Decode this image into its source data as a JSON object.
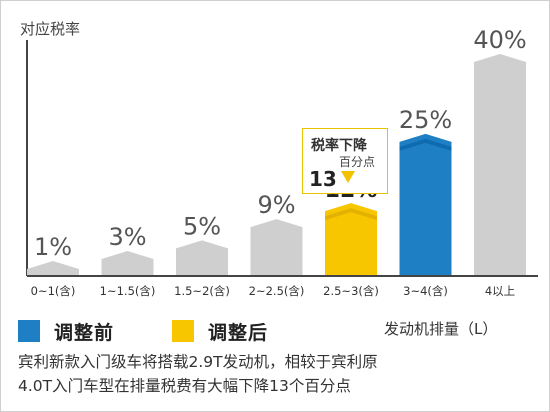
{
  "chart_data": {
    "type": "bar",
    "ylabel": "对应税率",
    "xlabel": "发动机排量（L）",
    "categories": [
      "0~1(含)",
      "1~1.5(含)",
      "1.5~2(含)",
      "2~2.5(含)",
      "2.5~3(含)",
      "3~4(含)",
      "4以上"
    ],
    "values": [
      1,
      3,
      5,
      9,
      12,
      25,
      40
    ],
    "value_labels": [
      "1%",
      "3%",
      "5%",
      "9%",
      "12%",
      "25%",
      "40%"
    ],
    "ylim": [
      0,
      40
    ],
    "grid": false,
    "legend": "bottom-left",
    "highlight": [
      {
        "category": "3~4(含)",
        "label": "调整前",
        "color": "#1f7fc4"
      },
      {
        "category": "2.5~3(含)",
        "label": "调整后",
        "color": "#f7c600"
      }
    ],
    "annotation": {
      "title": "税率下降",
      "value": "13",
      "unit": "百分点"
    }
  },
  "legend": [
    {
      "label": "调整前",
      "color": "#1f7fc4"
    },
    {
      "label": "调整后",
      "color": "#f7c600"
    }
  ],
  "colors": {
    "default_bar": "#cfcfcf",
    "before": "#1f7fc4",
    "after": "#f7c600",
    "axis": "#444444"
  },
  "caption": [
    "宾利新款入门级车将搭载2.9T发动机，相较于宾利原",
    "4.0T入门车型在排量税费有大幅下降13个百分点"
  ]
}
